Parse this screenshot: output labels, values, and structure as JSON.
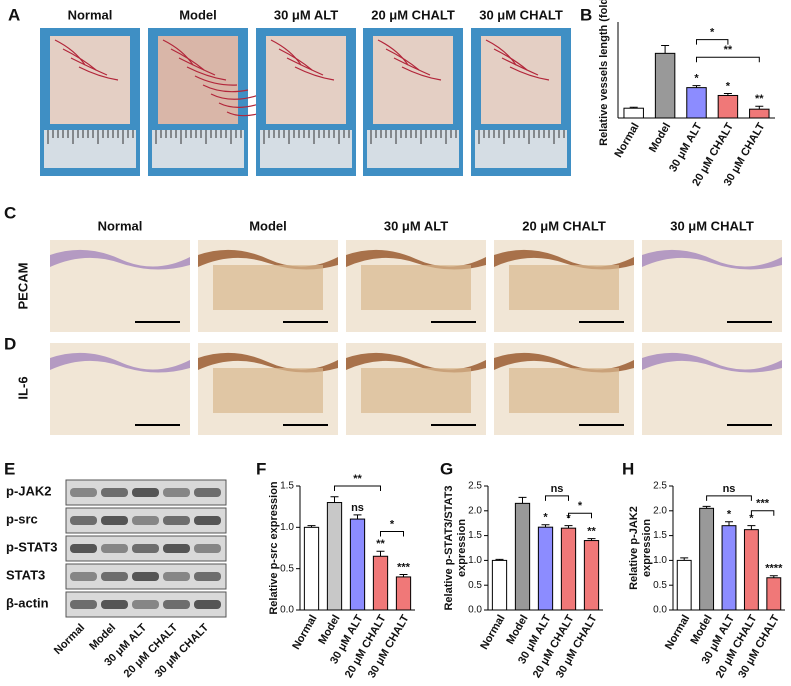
{
  "figure": {
    "letters": [
      "A",
      "B",
      "C",
      "D",
      "E",
      "F",
      "G",
      "H"
    ],
    "photo_columns": [
      "Normal",
      "Model",
      "30 μM ALT",
      "20 μM CHALT",
      "30 μM CHALT"
    ],
    "histology_columns": [
      "Normal",
      "Model",
      "30 μM ALT",
      "20 μM CHALT",
      "30 μM CHALT"
    ],
    "histology_rows": [
      "PECAM",
      "IL-6"
    ],
    "blot_rows": [
      "p-JAK2",
      "p-src",
      "p-STAT3",
      "STAT3",
      "β-actin"
    ],
    "blot_lanes": [
      "Normal",
      "Model",
      "30 μM ALT",
      "20 μM CHALT",
      "30 μM CHALT"
    ]
  },
  "chart_data": [
    {
      "type": "bar",
      "ylabel": [
        "Relative vessels length (fold)"
      ],
      "categories": [
        "Normal",
        "Model",
        "30 μM ALT",
        "20 μM CHALT",
        "30 μM CHALT"
      ],
      "values": [
        1.0,
        6.6,
        3.1,
        2.3,
        0.9
      ],
      "errors": [
        0.1,
        0.8,
        0.2,
        0.2,
        0.3
      ],
      "colors": [
        "#ffffff",
        "#999999",
        "#8c8cff",
        "#f07878",
        "#f07878"
      ],
      "ylim": [
        0,
        9.8
      ],
      "bar_labels": [
        null,
        null,
        "*",
        "*",
        "**"
      ],
      "brackets": [
        "*",
        "**"
      ]
    },
    {
      "type": "bar",
      "ylabel": [
        "Relative p-src expression"
      ],
      "categories": [
        "Normal",
        "Model",
        "30 μM ALT",
        "20 μM CHALT",
        "30 μM CHALT"
      ],
      "values": [
        1.0,
        1.3,
        1.1,
        0.65,
        0.4
      ],
      "errors": [
        0.02,
        0.07,
        0.05,
        0.06,
        0.03
      ],
      "colors": [
        "#ffffff",
        "#c8c8c8",
        "#8c8cff",
        "#f07878",
        "#f07878"
      ],
      "ylim": [
        0,
        1.5
      ],
      "yticks": [
        {
          "value": 0,
          "label": "0.0"
        },
        {
          "value": 0.5,
          "label": "0.5"
        },
        {
          "value": 1,
          "label": "1.0"
        },
        {
          "value": 1.5,
          "label": "1.5"
        }
      ],
      "bar_labels": [
        null,
        null,
        "ns",
        "**",
        "***"
      ],
      "brackets": [
        "**",
        "*"
      ]
    },
    {
      "type": "bar",
      "ylabel": [
        "Relative p-STAT3/STAT3",
        "expression"
      ],
      "categories": [
        "Normal",
        "Model",
        "30 μM ALT",
        "20 μM CHALT",
        "30 μM CHALT"
      ],
      "values": [
        1.0,
        2.15,
        1.67,
        1.65,
        1.4
      ],
      "errors": [
        0.02,
        0.12,
        0.05,
        0.05,
        0.04
      ],
      "colors": [
        "#ffffff",
        "#999999",
        "#8c8cff",
        "#f07878",
        "#f07878"
      ],
      "ylim": [
        0,
        2.5
      ],
      "yticks": [
        {
          "value": 0,
          "label": "0.0"
        },
        {
          "value": 0.5,
          "label": "0.5"
        },
        {
          "value": 1,
          "label": "1.0"
        },
        {
          "value": 1.5,
          "label": "1.5"
        },
        {
          "value": 2,
          "label": "2.0"
        },
        {
          "value": 2.5,
          "label": "2.5"
        }
      ],
      "bar_labels": [
        null,
        null,
        "*",
        "*",
        "**"
      ],
      "brackets": [
        "ns",
        "*"
      ]
    },
    {
      "type": "bar",
      "ylabel": [
        "Relative p-JAK2",
        "expression"
      ],
      "categories": [
        "Normal",
        "Model",
        "30 μM ALT",
        "20 μM CHALT",
        "30 μM CHALT"
      ],
      "values": [
        1.0,
        2.05,
        1.7,
        1.62,
        0.65
      ],
      "errors": [
        0.05,
        0.04,
        0.08,
        0.08,
        0.04
      ],
      "colors": [
        "#ffffff",
        "#999999",
        "#8c8cff",
        "#f07878",
        "#f07878"
      ],
      "ylim": [
        0,
        2.5
      ],
      "yticks": [
        {
          "value": 0,
          "label": "0.0"
        },
        {
          "value": 0.5,
          "label": "0.5"
        },
        {
          "value": 1,
          "label": "1.0"
        },
        {
          "value": 1.5,
          "label": "1.5"
        },
        {
          "value": 2,
          "label": "2.0"
        },
        {
          "value": 2.5,
          "label": "2.5"
        }
      ],
      "bar_labels": [
        null,
        null,
        "*",
        "*",
        "****"
      ],
      "brackets": [
        "ns",
        "***"
      ]
    }
  ]
}
